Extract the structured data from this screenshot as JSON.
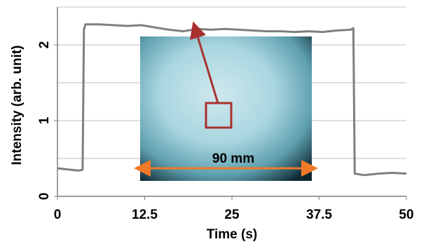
{
  "chart_data": {
    "type": "line",
    "x_label": "Time (s)",
    "y_label": "Intensity (arb. unit)",
    "x": [
      0,
      1,
      2,
      3,
      3.6,
      3.8,
      4,
      6,
      8,
      10,
      12,
      14,
      16,
      18,
      20,
      22,
      24,
      26,
      28,
      30,
      32,
      34,
      36,
      38,
      40,
      42,
      42.4,
      42.6,
      44,
      46,
      48,
      50
    ],
    "series": [
      {
        "color": "#7f7f7f",
        "values": [
          0.37,
          0.36,
          0.35,
          0.34,
          0.35,
          2.2,
          2.27,
          2.27,
          2.26,
          2.25,
          2.26,
          2.23,
          2.2,
          2.18,
          2.21,
          2.2,
          2.21,
          2.2,
          2.19,
          2.18,
          2.18,
          2.17,
          2.18,
          2.17,
          2.19,
          2.2,
          2.22,
          0.3,
          0.28,
          0.3,
          0.31,
          0.3
        ]
      }
    ],
    "xlim": [
      0,
      50
    ],
    "xticks": [
      0,
      12.5,
      25,
      37.5,
      50
    ],
    "ylim": [
      0,
      2.5
    ],
    "yticks": [
      0,
      1,
      2
    ],
    "ygrid": [
      0.5,
      1,
      1.5,
      2,
      2.5
    ],
    "grid": true,
    "annotations": [
      "90 mm"
    ]
  }
}
